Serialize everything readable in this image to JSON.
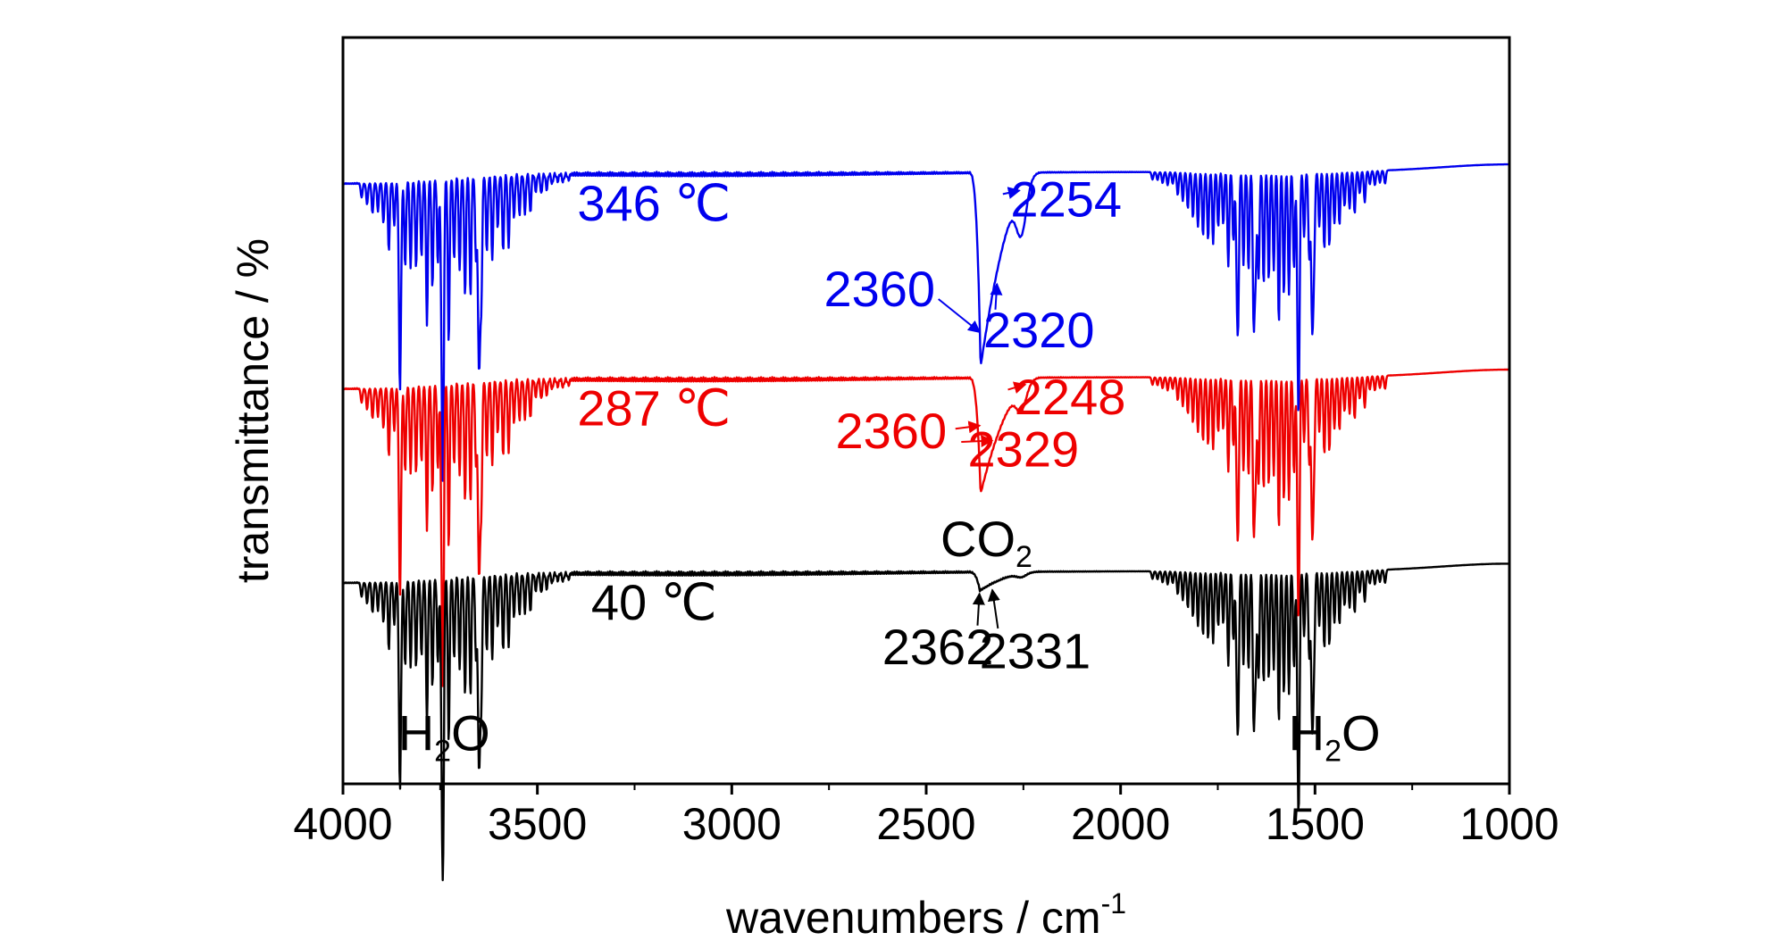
{
  "chart_data": {
    "type": "line",
    "title": "",
    "xlabel": "wavenumbers / cm",
    "xlabel_sup": "-1",
    "ylabel": "transmittance / %",
    "xlim": [
      4000,
      1000
    ],
    "x_reversed": true,
    "ylim": [
      0,
      10
    ],
    "y_ticks_shown": false,
    "grid": false,
    "x_ticks": [
      "4000",
      "3500",
      "3000",
      "2500",
      "2000",
      "1500",
      "1000"
    ],
    "colors": {
      "s40": "#000000",
      "s287": "#ee0000",
      "s346": "#0000ee"
    },
    "series": [
      {
        "key": "s346",
        "offset": 8.2,
        "label": "346 ℃",
        "label_x": 3200,
        "co2": {
          "x": 2360,
          "y": 5.6,
          "step": 0.6
        },
        "water_scale": 1.0
      },
      {
        "key": "s287",
        "offset": 5.45,
        "label": "287 ℃",
        "label_x": 3200,
        "co2": {
          "x": 2360,
          "y": 3.9,
          "step": 0.3
        },
        "water_scale": 1.0
      },
      {
        "key": "s40",
        "offset": 2.85,
        "label": "40 ℃",
        "label_x": 3200,
        "co2": {
          "x": 2362,
          "y": 2.6,
          "step": 0.05
        },
        "water_scale": 1.0
      }
    ],
    "annotations": [
      {
        "text": "2254",
        "series": "s346",
        "x": 2140,
        "y": 7.6,
        "arrow_to": [
          2260,
          7.95
        ]
      },
      {
        "text": "2360",
        "series": "s346",
        "x": 2620,
        "y": 6.4,
        "arrow_to": [
          2362,
          6.05
        ]
      },
      {
        "text": "2320",
        "series": "s346",
        "x": 2210,
        "y": 5.85,
        "arrow_to": [
          2318,
          6.7
        ]
      },
      {
        "text": "2248",
        "series": "s287",
        "x": 2130,
        "y": 4.95,
        "arrow_to": [
          2245,
          5.35
        ]
      },
      {
        "text": "2360",
        "series": "s287",
        "x": 2590,
        "y": 4.5,
        "arrow_to": [
          2362,
          4.8
        ]
      },
      {
        "text": "2329",
        "series": "s287",
        "x": 2250,
        "y": 4.25,
        "arrow_to": [
          2330,
          4.6
        ]
      },
      {
        "text": "2362",
        "series": "s40",
        "x": 2470,
        "y": 1.6,
        "arrow_to": [
          2363,
          2.55
        ]
      },
      {
        "text": "2331",
        "series": "s40",
        "x": 2220,
        "y": 1.55,
        "arrow_to": [
          2330,
          2.6
        ]
      }
    ],
    "labels": [
      {
        "text": "CO",
        "sub": "2",
        "x": 2345,
        "y": 3.05,
        "color": "#000000"
      },
      {
        "text": "H",
        "sub": "2",
        "tail": "O",
        "x": 3740,
        "y": 0.45,
        "color": "#000000"
      },
      {
        "text": "H",
        "sub": "2",
        "tail": "O",
        "x": 1450,
        "y": 0.45,
        "color": "#000000"
      }
    ]
  }
}
